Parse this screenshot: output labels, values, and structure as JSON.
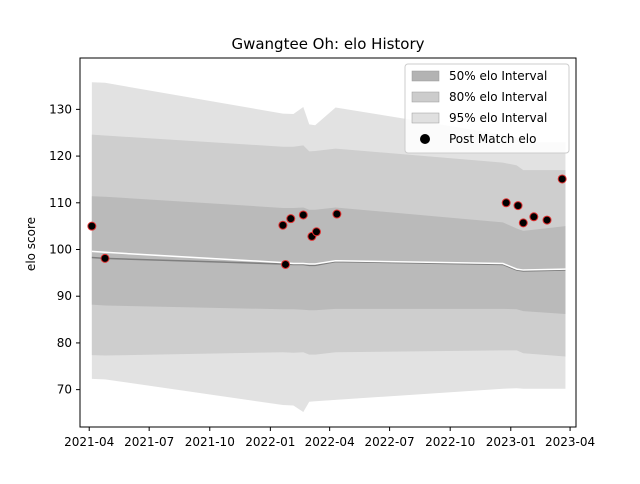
{
  "chart_data": {
    "type": "line",
    "title": "Gwangtee Oh: elo History",
    "xlabel": "",
    "ylabel": "elo score",
    "x_type": "date",
    "xlim": [
      "2021-03-18",
      "2023-04-10"
    ],
    "ylim": [
      62,
      141
    ],
    "x_ticks": [
      "2021-04",
      "2021-07",
      "2021-10",
      "2022-01",
      "2022-04",
      "2022-07",
      "2022-10",
      "2023-01",
      "2023-04"
    ],
    "y_ticks": [
      70,
      80,
      90,
      100,
      110,
      120,
      130
    ],
    "grid": false,
    "legend_position": "top-right",
    "colors": {
      "band95": "#e2e2e2",
      "band80": "#cecece",
      "band50": "#bababa",
      "mean_line": "#7f7f7f",
      "alt_line": "#ffffff",
      "marker_face": "#000000",
      "marker_edge": "#e03030"
    },
    "legend": [
      {
        "label": "50% elo Interval",
        "kind": "patch",
        "color": "#b3b3b3"
      },
      {
        "label": "80% elo Interval",
        "kind": "patch",
        "color": "#cccccc"
      },
      {
        "label": "95% elo Interval",
        "kind": "patch",
        "color": "#e0e0e0"
      },
      {
        "label": "Post Match elo",
        "kind": "marker",
        "color": "#000000"
      }
    ],
    "bands": {
      "dates": [
        "2021-04-05",
        "2021-04-25",
        "2022-01-20",
        "2022-02-05",
        "2022-02-20",
        "2022-03-01",
        "2022-03-10",
        "2022-04-10",
        "2022-12-20",
        "2023-01-10",
        "2023-01-20",
        "2023-03-25"
      ],
      "p95_upper": [
        135.8,
        135.7,
        129.1,
        129.0,
        130.5,
        126.8,
        126.6,
        130.4,
        124.6,
        124.0,
        123.0,
        123.0
      ],
      "p80_upper": [
        124.6,
        124.4,
        122.0,
        122.0,
        122.3,
        121.0,
        121.1,
        121.6,
        118.6,
        118.0,
        117.0,
        117.0
      ],
      "p50_upper": [
        111.4,
        111.3,
        108.9,
        108.9,
        109.0,
        108.5,
        108.5,
        109.0,
        105.8,
        104.5,
        104.0,
        105.0
      ],
      "p50_lower": [
        88.2,
        88.0,
        87.2,
        87.2,
        87.1,
        87.0,
        87.0,
        87.3,
        87.3,
        87.2,
        86.8,
        86.2
      ],
      "p80_lower": [
        77.4,
        77.3,
        78.0,
        77.9,
        78.0,
        77.5,
        77.5,
        78.0,
        78.4,
        78.4,
        77.8,
        77.1
      ],
      "p95_lower": [
        72.3,
        72.2,
        66.7,
        66.6,
        65.2,
        67.4,
        67.5,
        67.8,
        70.2,
        70.3,
        70.2,
        70.2
      ]
    },
    "series": [
      {
        "x": [
          "2021-04-05",
          "2021-04-25",
          "2022-01-20",
          "2022-02-05",
          "2022-02-20",
          "2022-03-01",
          "2022-03-10",
          "2022-04-10",
          "2022-12-20",
          "2023-01-10",
          "2023-01-20",
          "2023-03-25"
        ],
        "values": [
          98.3,
          98.1,
          96.9,
          96.8,
          96.8,
          96.6,
          96.6,
          97.4,
          96.8,
          95.6,
          95.4,
          95.6
        ],
        "style": "line",
        "color": "#7f7f7f"
      },
      {
        "x": [
          "2021-04-05",
          "2021-04-25",
          "2022-01-20",
          "2022-02-05",
          "2022-02-20",
          "2022-03-01",
          "2022-03-10",
          "2022-04-10",
          "2022-12-20",
          "2023-01-10",
          "2023-01-20",
          "2023-03-25"
        ],
        "values": [
          99.6,
          99.4,
          97.2,
          97.0,
          97.0,
          96.9,
          96.9,
          97.6,
          97.0,
          95.8,
          95.6,
          95.8
        ],
        "style": "line",
        "color": "#ffffff"
      },
      {
        "name": "Post Match elo",
        "style": "scatter",
        "x": [
          "2021-04-05",
          "2021-04-25",
          "2022-01-20",
          "2022-01-24",
          "2022-02-01",
          "2022-02-20",
          "2022-03-05",
          "2022-03-12",
          "2022-04-12",
          "2022-12-25",
          "2023-01-12",
          "2023-01-20",
          "2023-02-05",
          "2023-02-25",
          "2023-03-20"
        ],
        "values": [
          105.0,
          98.1,
          105.2,
          96.8,
          106.6,
          107.4,
          102.8,
          103.8,
          107.6,
          110.0,
          109.4,
          105.7,
          107.0,
          106.3,
          115.1
        ]
      }
    ]
  }
}
